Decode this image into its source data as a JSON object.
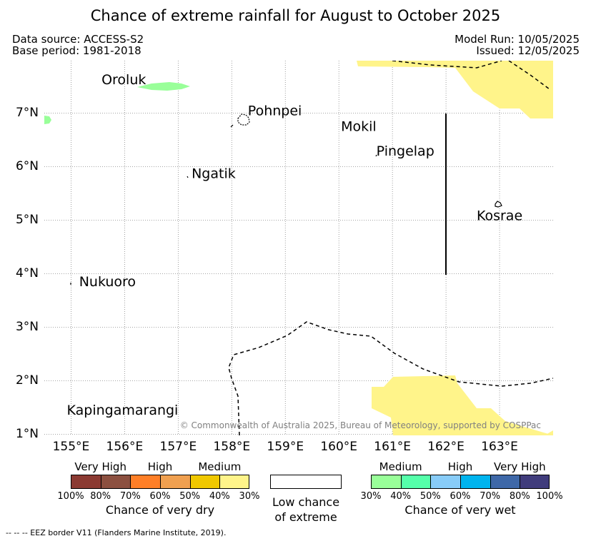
{
  "title": "Chance of extreme rainfall for August to October 2025",
  "data_source": "Data source: ACCESS-S2",
  "base_period": "Base period: 1981-2018",
  "model_run": "Model Run: 10/05/2025",
  "issued": "Issued: 12/05/2025",
  "map": {
    "extent": {
      "lon": [
        154.5,
        164.0
      ],
      "lat": [
        0.98,
        7.98
      ]
    },
    "gridlines": true,
    "lon_ticks": [
      {
        "value": 155,
        "label": "155°E"
      },
      {
        "value": 156,
        "label": "156°E"
      },
      {
        "value": 157,
        "label": "157°E"
      },
      {
        "value": 158,
        "label": "158°E"
      },
      {
        "value": 159,
        "label": "159°E"
      },
      {
        "value": 160,
        "label": "160°E"
      },
      {
        "value": 161,
        "label": "161°E"
      },
      {
        "value": 162,
        "label": "162°E"
      },
      {
        "value": 163,
        "label": "163°E"
      }
    ],
    "lat_ticks": [
      {
        "value": 1,
        "label": "1°N"
      },
      {
        "value": 2,
        "label": "2°N"
      },
      {
        "value": 3,
        "label": "3°N"
      },
      {
        "value": 4,
        "label": "4°N"
      },
      {
        "value": 5,
        "label": "5°N"
      },
      {
        "value": 6,
        "label": "6°N"
      },
      {
        "value": 7,
        "label": "7°N"
      }
    ],
    "places": [
      {
        "name": "Oroluk",
        "lon": 156.4,
        "lat": 7.54,
        "align": "end"
      },
      {
        "name": "Pohnpei",
        "lon": 158.3,
        "lat": 6.96,
        "align": "start"
      },
      {
        "name": "Mokil",
        "lon": 160.7,
        "lat": 6.67,
        "align": "end"
      },
      {
        "name": "Pingelap",
        "lon": 160.7,
        "lat": 6.21,
        "align": "start"
      },
      {
        "name": "Ngatik",
        "lon": 157.25,
        "lat": 5.79,
        "align": "start"
      },
      {
        "name": "Kosrae",
        "lon": 163.0,
        "lat": 5.0,
        "align": "middle"
      },
      {
        "name": "Nukuoro",
        "lon": 155.15,
        "lat": 3.77,
        "align": "start"
      },
      {
        "name": "Kapingamarangi",
        "lon": 155.96,
        "lat": 1.37,
        "align": "middle"
      }
    ],
    "copyright": "© Commonwealth of Australia 2025, Bureau of Meteorology, supported by COSPPac"
  },
  "colorbars": {
    "dry": {
      "groups": [
        "Very High",
        "High",
        "Medium"
      ],
      "colors": [
        "#8b3a32",
        "#8c5040",
        "#ff7f27",
        "#f0a050",
        "#f0c800",
        "#fff48a"
      ],
      "ticks": [
        "100%",
        "80%",
        "70%",
        "60%",
        "50%",
        "40%",
        "30%"
      ],
      "title": "Chance of very dry"
    },
    "low": {
      "title_line1": "Low chance",
      "title_line2": "of extreme",
      "color": "#ffffff"
    },
    "wet": {
      "groups": [
        "Medium",
        "High",
        "Very High"
      ],
      "colors": [
        "#99ff99",
        "#55ffaa",
        "#88ccf8",
        "#00b4ee",
        "#3e68a8",
        "#403c7c"
      ],
      "ticks": [
        "30%",
        "40%",
        "50%",
        "60%",
        "70%",
        "80%",
        "100%"
      ],
      "title": "Chance of very wet"
    }
  },
  "footer": "-- -- -- EEZ border V11 (Flanders Marine Institute, 2019)."
}
